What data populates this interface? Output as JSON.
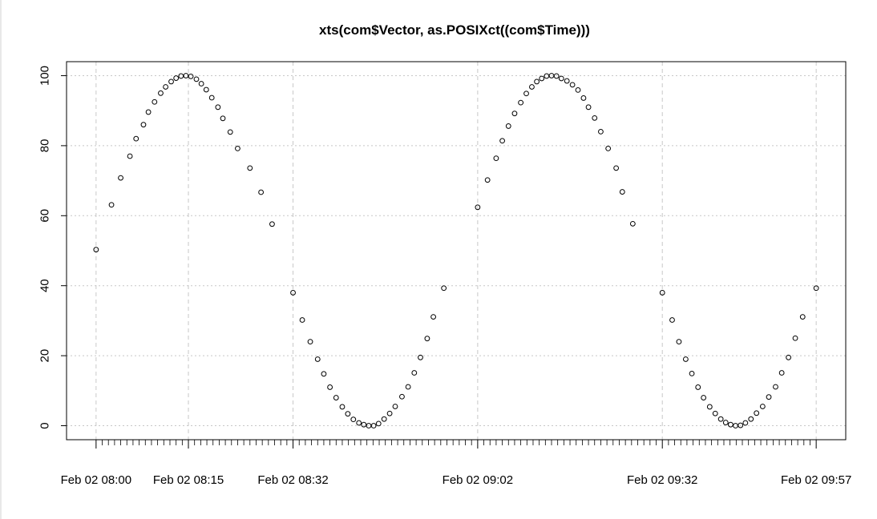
{
  "chart_data": {
    "type": "scatter",
    "title": "xts(com$Vector, as.POSIXct((com$Time)))",
    "xlabel": "",
    "ylabel": "",
    "x_unit": "minutes",
    "x_tick_labels": [
      {
        "label": "Feb 02 08:00",
        "x": 0
      },
      {
        "label": "Feb 02 08:15",
        "x": 15
      },
      {
        "label": "Feb 02 08:32",
        "x": 32
      },
      {
        "label": "Feb 02 09:02",
        "x": 62
      },
      {
        "label": "Feb 02 09:32",
        "x": 92
      },
      {
        "label": "Feb 02 09:57",
        "x": 117
      }
    ],
    "minor_ticks": [
      1,
      2,
      3,
      4,
      5,
      6,
      7,
      8,
      9,
      10,
      11,
      12,
      13,
      14,
      16,
      17,
      18,
      19,
      20,
      21,
      22,
      23,
      24,
      25,
      26,
      27,
      28,
      29,
      30,
      31,
      33,
      34,
      35,
      36,
      37,
      38,
      39,
      40,
      41,
      42,
      43,
      44,
      45,
      46,
      47,
      48,
      49,
      50,
      51,
      52,
      53,
      54,
      55,
      56,
      57,
      58,
      59,
      60,
      61,
      63,
      64,
      65,
      66,
      67,
      68,
      69,
      70,
      71,
      72,
      73,
      74,
      75,
      76,
      77,
      78,
      79,
      80,
      81,
      82,
      83,
      84,
      85,
      86,
      87,
      88,
      89,
      90,
      91,
      93,
      94,
      95,
      96,
      97,
      98,
      99,
      100,
      101,
      102,
      103,
      104,
      105,
      106,
      107,
      108,
      109,
      110,
      111,
      112,
      113,
      114,
      115,
      116
    ],
    "y_ticks": [
      0,
      20,
      40,
      60,
      80,
      100
    ],
    "xlim": [
      -4.8,
      121.8
    ],
    "ylim": [
      -4,
      104
    ],
    "grid": true,
    "series": [
      {
        "points": [
          [
            0,
            50.3
          ],
          [
            2.5,
            63.1
          ],
          [
            4,
            70.8
          ],
          [
            5.5,
            77.0
          ],
          [
            6.5,
            82.0
          ],
          [
            7.7,
            86.0
          ],
          [
            8.5,
            89.6
          ],
          [
            9.5,
            92.5
          ],
          [
            10.5,
            95.0
          ],
          [
            11.3,
            96.8
          ],
          [
            12.2,
            98.3
          ],
          [
            13.0,
            99.3
          ],
          [
            13.8,
            99.9
          ],
          [
            14.6,
            100.0
          ],
          [
            15.4,
            99.8
          ],
          [
            16.3,
            99.0
          ],
          [
            17.1,
            97.7
          ],
          [
            17.9,
            96.0
          ],
          [
            18.8,
            93.7
          ],
          [
            19.8,
            91.0
          ],
          [
            20.6,
            87.8
          ],
          [
            21.8,
            83.9
          ],
          [
            23.0,
            79.2
          ],
          [
            25.0,
            73.6
          ],
          [
            26.8,
            66.7
          ],
          [
            28.6,
            57.6
          ],
          [
            32.0,
            38.0
          ],
          [
            33.5,
            30.2
          ],
          [
            34.8,
            24.0
          ],
          [
            36.0,
            19.0
          ],
          [
            37.0,
            14.8
          ],
          [
            38.0,
            11.0
          ],
          [
            39.0,
            8.0
          ],
          [
            40.0,
            5.4
          ],
          [
            40.9,
            3.4
          ],
          [
            41.8,
            1.8
          ],
          [
            42.7,
            0.8
          ],
          [
            43.5,
            0.3
          ],
          [
            44.3,
            0.0
          ],
          [
            45.1,
            0.0
          ],
          [
            45.9,
            0.6
          ],
          [
            46.8,
            1.9
          ],
          [
            47.7,
            3.5
          ],
          [
            48.6,
            5.5
          ],
          [
            49.7,
            8.3
          ],
          [
            50.7,
            11.1
          ],
          [
            51.7,
            15.1
          ],
          [
            52.7,
            19.5
          ],
          [
            53.8,
            24.9
          ],
          [
            54.8,
            31.1
          ],
          [
            56.5,
            39.3
          ],
          [
            62.0,
            62.4
          ],
          [
            63.6,
            70.2
          ],
          [
            65.0,
            76.4
          ],
          [
            66.0,
            81.4
          ],
          [
            67.0,
            85.6
          ],
          [
            68.0,
            89.2
          ],
          [
            69.0,
            92.3
          ],
          [
            69.9,
            94.9
          ],
          [
            70.8,
            96.8
          ],
          [
            71.6,
            98.3
          ],
          [
            72.4,
            99.2
          ],
          [
            73.2,
            99.9
          ],
          [
            74.0,
            100.0
          ],
          [
            74.8,
            99.9
          ],
          [
            75.6,
            99.2
          ],
          [
            76.5,
            98.5
          ],
          [
            77.4,
            97.4
          ],
          [
            78.3,
            95.9
          ],
          [
            79.2,
            93.6
          ],
          [
            80.0,
            91.0
          ],
          [
            81.0,
            87.9
          ],
          [
            82.0,
            84.0
          ],
          [
            83.2,
            79.2
          ],
          [
            84.5,
            73.6
          ],
          [
            85.5,
            66.8
          ],
          [
            87.2,
            57.7
          ],
          [
            92.0,
            38.0
          ],
          [
            93.6,
            30.2
          ],
          [
            94.7,
            24.0
          ],
          [
            95.8,
            19.0
          ],
          [
            96.8,
            14.9
          ],
          [
            97.8,
            11.0
          ],
          [
            98.7,
            8.0
          ],
          [
            99.7,
            5.4
          ],
          [
            100.6,
            3.5
          ],
          [
            101.5,
            1.9
          ],
          [
            102.3,
            0.9
          ],
          [
            103.1,
            0.3
          ],
          [
            103.9,
            0.0
          ],
          [
            104.7,
            0.1
          ],
          [
            105.5,
            0.8
          ],
          [
            106.4,
            1.9
          ],
          [
            107.3,
            3.6
          ],
          [
            108.3,
            5.5
          ],
          [
            109.3,
            8.2
          ],
          [
            110.4,
            11.1
          ],
          [
            111.4,
            15.1
          ],
          [
            112.5,
            19.5
          ],
          [
            113.6,
            25.0
          ],
          [
            114.8,
            31.1
          ],
          [
            117.0,
            39.3
          ]
        ]
      }
    ]
  }
}
